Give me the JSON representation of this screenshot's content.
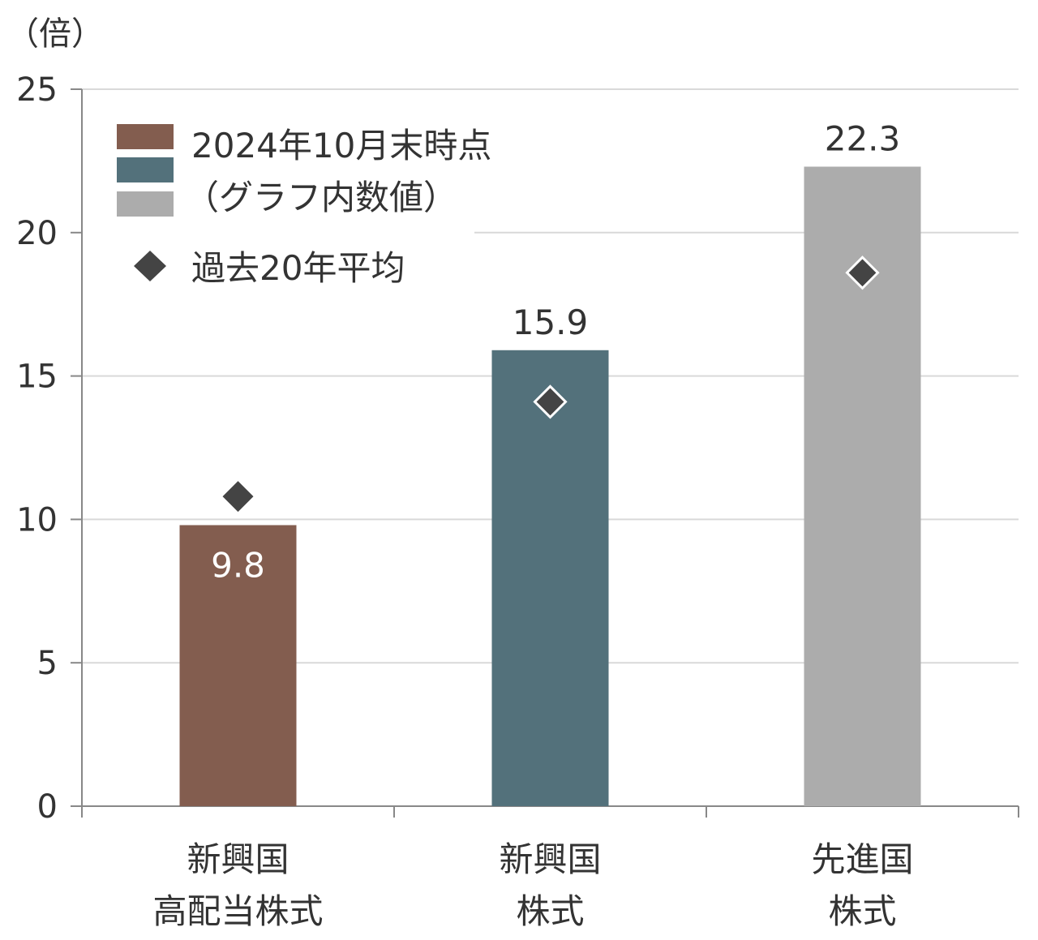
{
  "chart_data": {
    "type": "bar",
    "unit_label": "（倍）",
    "categories": [
      [
        "新興国",
        "高配当株式"
      ],
      [
        "新興国",
        "株式"
      ],
      [
        "先進国",
        "株式"
      ]
    ],
    "series": [
      {
        "name": "2024年10月末時点（グラフ内数値）",
        "values": [
          9.8,
          15.9,
          22.3
        ],
        "value_labels": [
          "9.8",
          "15.9",
          "22.3"
        ],
        "colors": [
          "#835d4f",
          "#53717b",
          "#acacac"
        ]
      },
      {
        "name": "過去20年平均",
        "type": "marker",
        "marker": "diamond",
        "values": [
          10.8,
          14.1,
          18.6
        ],
        "color": "#444444"
      }
    ],
    "ylim": [
      0,
      25
    ],
    "yticks": [
      0,
      5,
      10,
      15,
      20,
      25
    ],
    "ytick_labels": [
      "0",
      "5",
      "10",
      "15",
      "20",
      "25"
    ],
    "grid": true,
    "legend": {
      "position": "top-left",
      "bar_colors": [
        "#835d4f",
        "#53717b",
        "#acacac"
      ],
      "line1": "2024年10月末時点",
      "line2": "（グラフ内数値）",
      "marker_label": "過去20年平均"
    }
  }
}
